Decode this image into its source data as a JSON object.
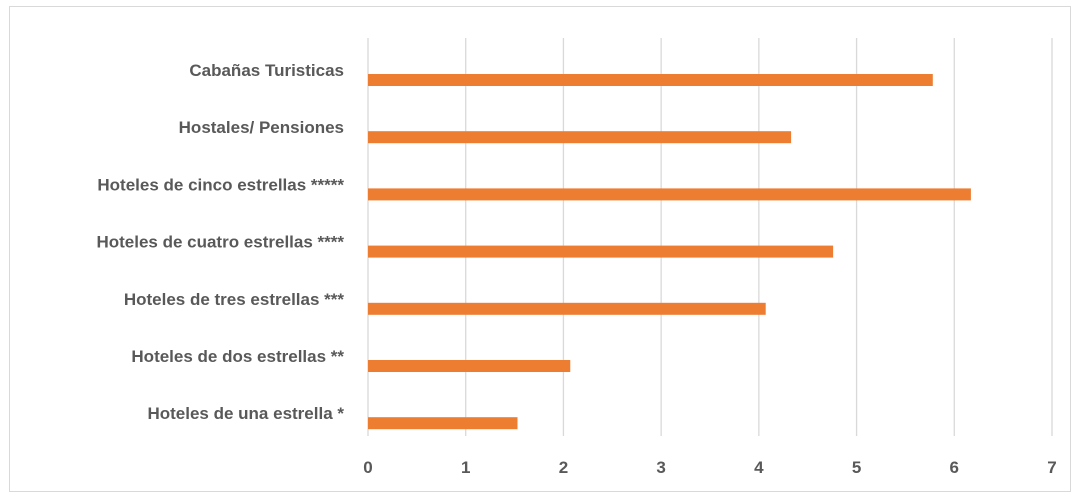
{
  "chart_data": {
    "type": "bar",
    "orientation": "horizontal",
    "categories": [
      "Cabañas Turisticas",
      "Hostales/ Pensiones",
      "Hoteles de cinco estrellas *****",
      "Hoteles de cuatro estrellas ****",
      "Hoteles de tres estrellas ***",
      "Hoteles de dos estrellas **",
      "Hoteles de una estrella *"
    ],
    "values": [
      5.78,
      4.33,
      6.17,
      4.76,
      4.07,
      2.07,
      1.53
    ],
    "xlim": [
      0,
      7
    ],
    "xticks": [
      "0",
      "1",
      "2",
      "3",
      "4",
      "5",
      "6",
      "7"
    ],
    "grid": "vertical",
    "bar_color": "#ED7D31",
    "grid_color": "#D9D9D9",
    "title": "",
    "xlabel": "",
    "ylabel": ""
  }
}
